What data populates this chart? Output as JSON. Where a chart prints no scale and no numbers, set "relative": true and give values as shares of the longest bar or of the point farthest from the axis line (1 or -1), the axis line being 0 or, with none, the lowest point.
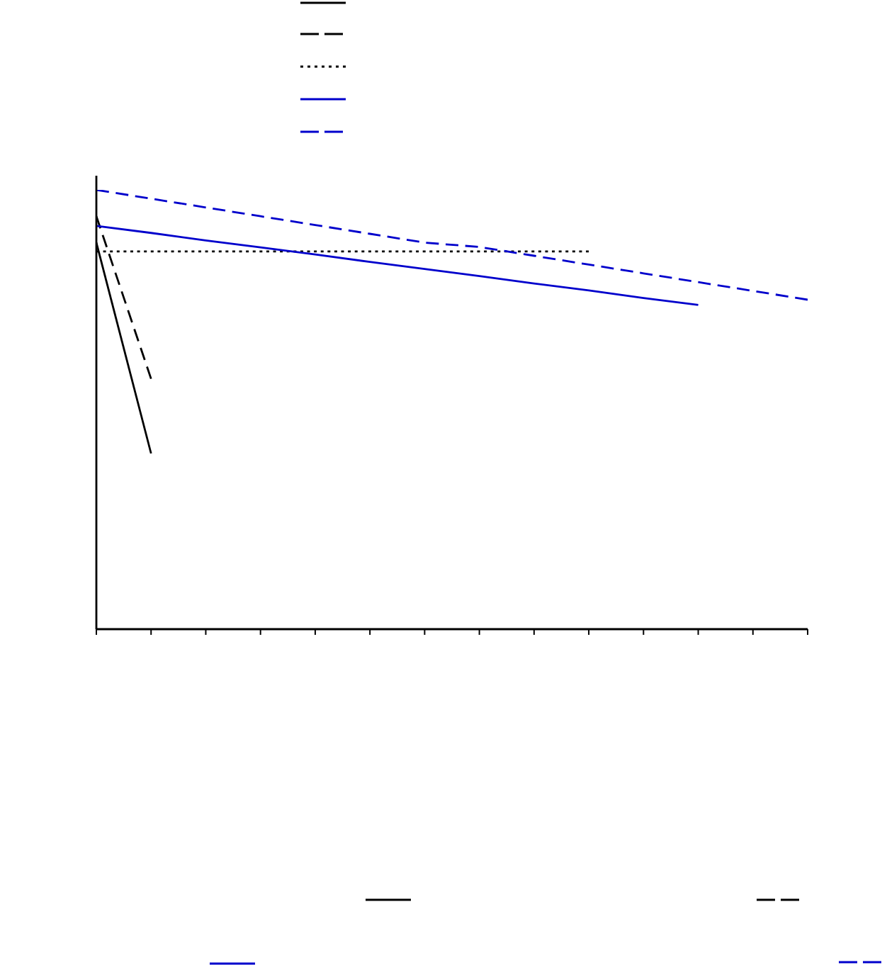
{
  "chart_data": {
    "type": "line",
    "relative": true,
    "categories": [
      null,
      null,
      null,
      null,
      null,
      null,
      null,
      null,
      null,
      null,
      null,
      null,
      null,
      null
    ],
    "series": [
      {
        "color": "#000000",
        "line_style": "solid",
        "values": [
          0.88,
          0.4,
          null,
          null,
          null,
          null,
          null,
          null,
          null,
          null,
          null,
          null,
          null,
          null
        ]
      },
      {
        "color": "#000000",
        "line_style": "dashed",
        "values": [
          0.94,
          0.57,
          null,
          null,
          null,
          null,
          null,
          null,
          null,
          null,
          null,
          null,
          null,
          null
        ]
      },
      {
        "color": "#000000",
        "line_style": "dotted",
        "values": [
          0.86,
          0.86,
          0.86,
          0.86,
          0.86,
          0.86,
          0.86,
          0.86,
          0.86,
          0.86,
          null,
          null,
          null,
          null
        ]
      },
      {
        "color": "#0000cc",
        "line_style": "solid",
        "values": [
          0.918,
          0.902,
          0.885,
          0.869,
          0.853,
          0.836,
          0.82,
          0.804,
          0.787,
          0.771,
          0.754,
          0.738,
          null,
          null
        ]
      },
      {
        "color": "#0000cc",
        "line_style": "dashed",
        "values": [
          1.0,
          0.98,
          0.96,
          0.94,
          0.92,
          0.9,
          0.88,
          0.87,
          0.85,
          0.83,
          0.81,
          0.79,
          0.77,
          0.75
        ]
      }
    ],
    "marker": "none",
    "grid": false
  }
}
